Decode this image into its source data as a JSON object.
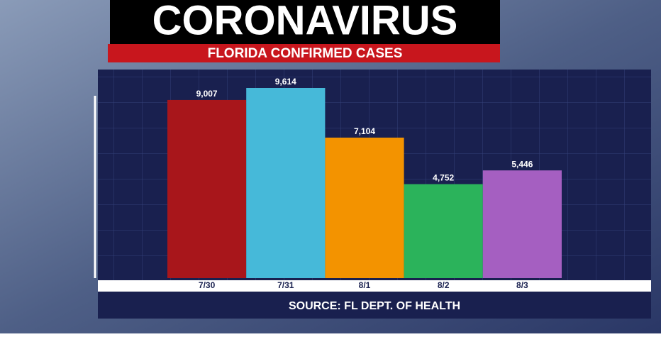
{
  "chart_data": {
    "type": "bar",
    "title": "CORONAVIRUS",
    "subtitle": "FLORIDA CONFIRMED CASES",
    "source": "SOURCE: FL DEPT. OF HEALTH",
    "categories": [
      "7/30",
      "7/31",
      "8/1",
      "8/2",
      "8/3"
    ],
    "values": [
      9007,
      9614,
      7104,
      4752,
      5446
    ],
    "value_labels": [
      "9,007",
      "9,614",
      "7,104",
      "4,752",
      "5,446"
    ],
    "colors": [
      "#a8161b",
      "#46b9d9",
      "#f39300",
      "#2bb35b",
      "#a55fc1"
    ]
  }
}
